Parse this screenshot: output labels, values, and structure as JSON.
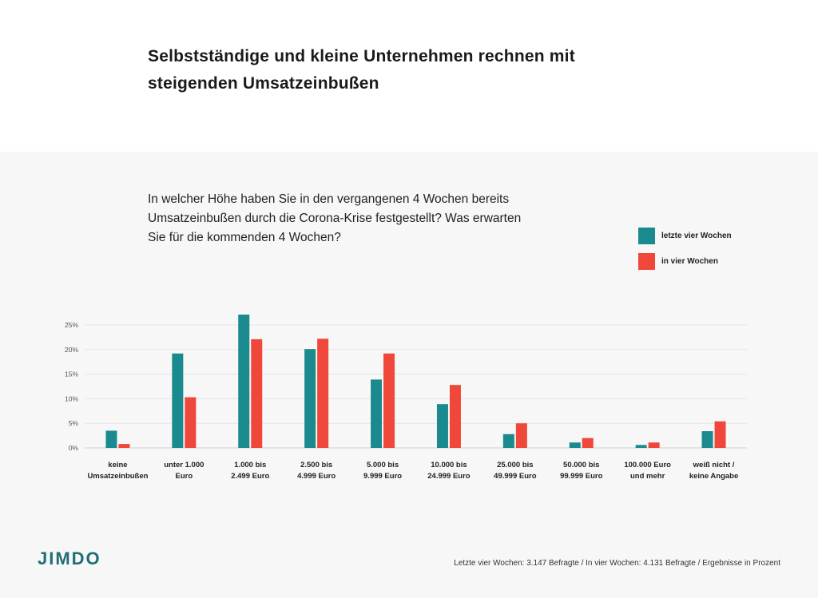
{
  "header": {
    "title_line1": "Selbstständige und kleine Unternehmen rechnen mit",
    "title_line2": "steigenden Umsatzeinbußen"
  },
  "question": {
    "line1": "In welcher Höhe haben Sie in den vergangenen 4 Wochen bereits",
    "line2": "Umsatzeinbußen durch die Corona-Krise festgestellt? Was erwarten",
    "line3": "Sie für die kommenden 4 Wochen?"
  },
  "legend": {
    "items": [
      {
        "label": "letzte vier Wochen",
        "color": "#1b8a8f"
      },
      {
        "label": "in vier Wochen",
        "color": "#f0473b"
      }
    ]
  },
  "chart_data": {
    "type": "bar",
    "categories": [
      [
        "keine",
        "Umsatzeinbußen"
      ],
      [
        "unter 1.000",
        "Euro"
      ],
      [
        "1.000 bis",
        "2.499 Euro"
      ],
      [
        "2.500 bis",
        "4.999 Euro"
      ],
      [
        "5.000 bis",
        "9.999 Euro"
      ],
      [
        "10.000 bis",
        "24.999 Euro"
      ],
      [
        "25.000 bis",
        "49.999 Euro"
      ],
      [
        "50.000 bis",
        "99.999 Euro"
      ],
      [
        "100.000 Euro",
        "und mehr"
      ],
      [
        "weiß nicht /",
        "keine Angabe"
      ]
    ],
    "series": [
      {
        "name": "letzte vier Wochen",
        "color": "#1b8a8f",
        "values": [
          3.5,
          19.2,
          27.1,
          20.1,
          13.9,
          8.9,
          2.8,
          1.1,
          0.6,
          3.4
        ]
      },
      {
        "name": "in vier Wochen",
        "color": "#f0473b",
        "values": [
          0.8,
          10.3,
          22.1,
          22.2,
          19.2,
          12.8,
          5.0,
          2.0,
          1.1,
          5.4
        ]
      }
    ],
    "yticks": [
      "0%",
      "5%",
      "10%",
      "15%",
      "20%",
      "25%"
    ],
    "ylim": [
      0,
      25
    ],
    "grid": true
  },
  "footer": {
    "logo": "JIMDO",
    "note": "Letzte vier Wochen: 3.147 Befragte /  In vier Wochen: 4.131 Befragte / Ergebnisse in Prozent"
  }
}
